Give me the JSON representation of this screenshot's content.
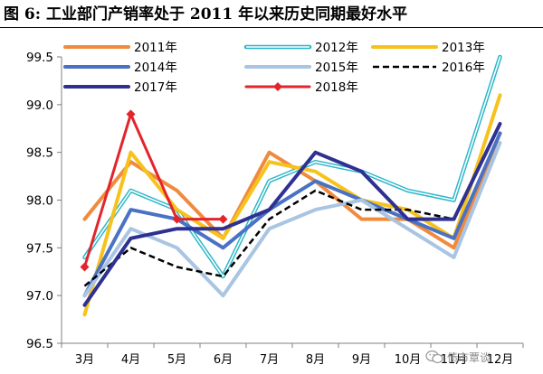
{
  "figure": {
    "title": "图 6:  工业部门产销率处于 2011 年以来历史同期最好水平"
  },
  "watermark": {
    "text": "债市覃谈",
    "icon": "wechat-icon"
  },
  "chart_data": {
    "type": "line",
    "title": "",
    "xlabel": "",
    "ylabel": "",
    "categories": [
      "3月",
      "4月",
      "5月",
      "6月",
      "7月",
      "8月",
      "9月",
      "10月",
      "11月",
      "12月"
    ],
    "ylim": [
      96.5,
      99.5
    ],
    "yticks": [
      "96.5",
      "97.0",
      "97.5",
      "98.0",
      "98.5",
      "99.0",
      "99.5"
    ],
    "grid": false,
    "legend": "top",
    "series": [
      {
        "name": "2011年",
        "color": "#f08a3c",
        "style": "solid",
        "width": 4,
        "double": false,
        "marker": false,
        "values": [
          97.8,
          98.4,
          98.1,
          97.6,
          98.5,
          98.2,
          97.8,
          97.8,
          97.5,
          98.7
        ]
      },
      {
        "name": "2012年",
        "color": "#29b6c8",
        "style": "solid",
        "width": 1.5,
        "double": true,
        "marker": false,
        "values": [
          97.4,
          98.1,
          97.9,
          97.2,
          98.2,
          98.4,
          98.3,
          98.1,
          98.0,
          99.5
        ]
      },
      {
        "name": "2013年",
        "color": "#f7c21b",
        "style": "solid",
        "width": 4,
        "double": false,
        "marker": false,
        "values": [
          96.8,
          98.5,
          97.9,
          97.6,
          98.4,
          98.3,
          98.0,
          97.9,
          97.6,
          99.1
        ]
      },
      {
        "name": "2014年",
        "color": "#4a72c4",
        "style": "solid",
        "width": 4,
        "double": false,
        "marker": false,
        "values": [
          97.0,
          97.9,
          97.8,
          97.5,
          97.9,
          98.2,
          98.0,
          97.8,
          97.6,
          98.7
        ]
      },
      {
        "name": "2015年",
        "color": "#a9c5e3",
        "style": "solid",
        "width": 4,
        "double": false,
        "marker": false,
        "values": [
          97.0,
          97.7,
          97.5,
          97.0,
          97.7,
          97.9,
          98.0,
          97.7,
          97.4,
          98.6
        ]
      },
      {
        "name": "2016年",
        "color": "#000000",
        "style": "dashed",
        "width": 2.5,
        "double": false,
        "marker": false,
        "values": [
          97.1,
          97.5,
          97.3,
          97.2,
          97.8,
          98.1,
          97.9,
          97.9,
          97.8,
          98.8
        ]
      },
      {
        "name": "2017年",
        "color": "#2e3191",
        "style": "solid",
        "width": 4,
        "double": false,
        "marker": false,
        "values": [
          96.9,
          97.6,
          97.7,
          97.7,
          97.9,
          98.5,
          98.3,
          97.8,
          97.8,
          98.8
        ]
      },
      {
        "name": "2018年",
        "color": "#e3242b",
        "style": "solid",
        "width": 3,
        "double": false,
        "marker": true,
        "values": [
          97.3,
          98.9,
          97.8,
          97.8,
          null,
          null,
          null,
          null,
          null,
          null
        ]
      }
    ]
  }
}
